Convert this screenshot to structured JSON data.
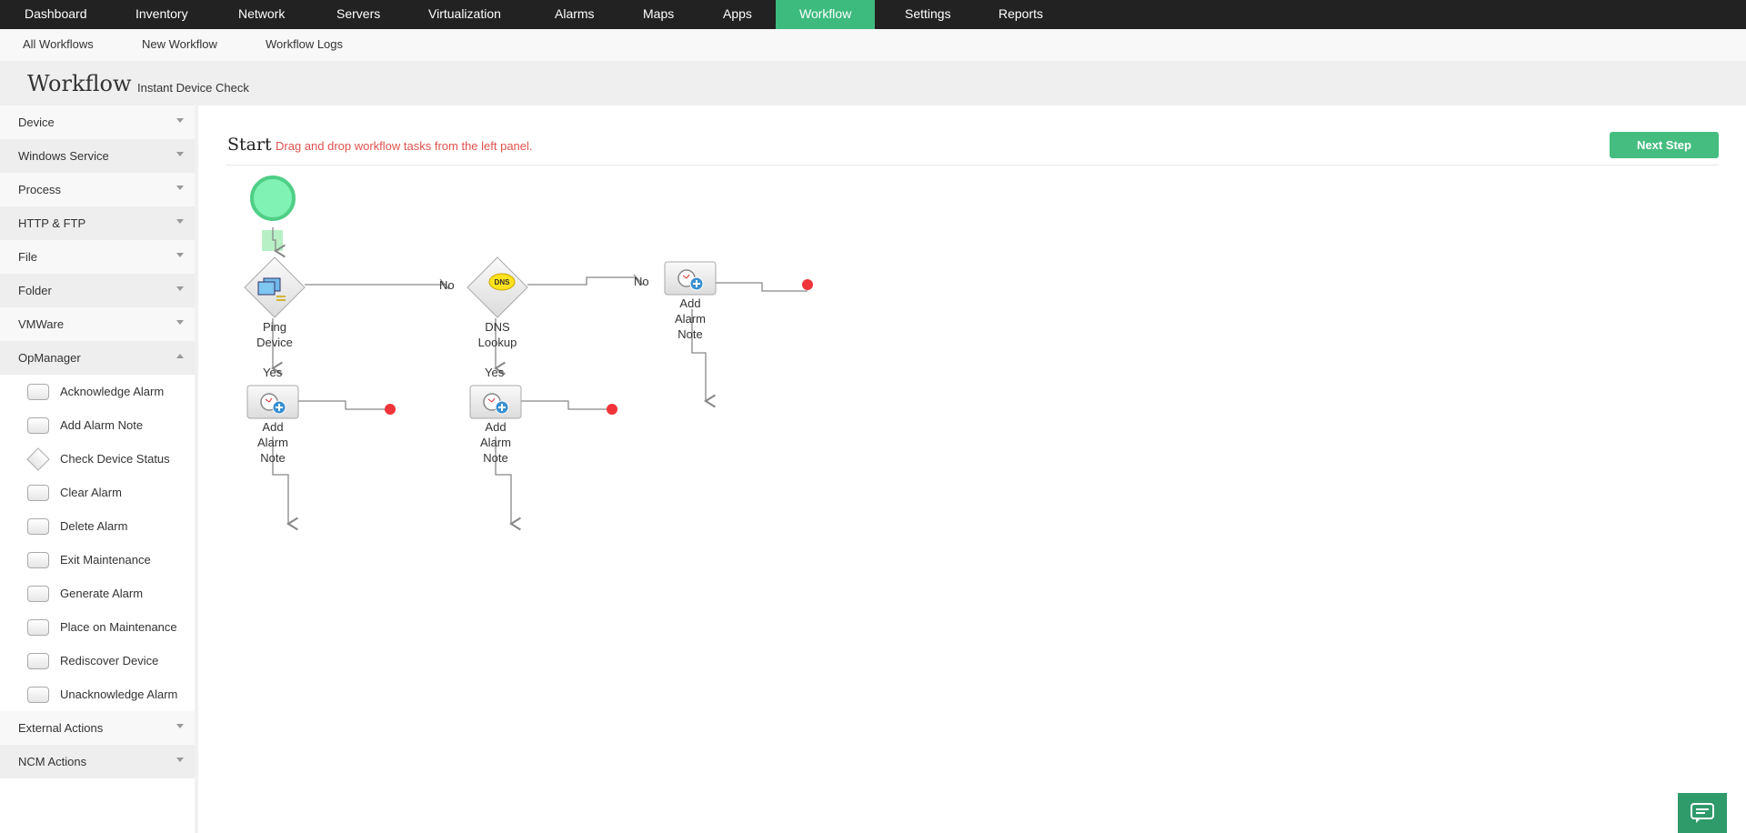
{
  "topnav": {
    "items": [
      "Dashboard",
      "Inventory",
      "Network",
      "Servers",
      "Virtualization",
      "Alarms",
      "Maps",
      "Apps",
      "Workflow",
      "Settings",
      "Reports"
    ],
    "active": "Workflow",
    "active_color": "#3dbb7e"
  },
  "subnav": {
    "items": [
      "All Workflows",
      "New Workflow",
      "Workflow Logs"
    ]
  },
  "header": {
    "title": "Workflow",
    "subtitle": "Instant Device Check"
  },
  "sidebar": {
    "sections_top": [
      "Device",
      "Windows Service",
      "Process",
      "HTTP & FTP",
      "File",
      "Folder",
      "VMWare"
    ],
    "expanded": {
      "label": "OpManager",
      "items": [
        {
          "label": "Acknowledge Alarm",
          "icon": "task-box-icon"
        },
        {
          "label": "Add Alarm Note",
          "icon": "task-box-icon"
        },
        {
          "label": "Check Device Status",
          "icon": "condition-diamond-icon"
        },
        {
          "label": "Clear Alarm",
          "icon": "task-box-icon"
        },
        {
          "label": "Delete Alarm",
          "icon": "task-box-icon"
        },
        {
          "label": "Exit Maintenance",
          "icon": "task-box-icon"
        },
        {
          "label": "Generate Alarm",
          "icon": "task-box-icon"
        },
        {
          "label": "Place on Maintenance",
          "icon": "task-box-icon"
        },
        {
          "label": "Rediscover Device",
          "icon": "task-box-icon"
        },
        {
          "label": "Unacknowledge Alarm",
          "icon": "task-box-icon"
        }
      ]
    },
    "sections_bottom": [
      "External Actions",
      "NCM Actions"
    ]
  },
  "canvas": {
    "start_label": "Start",
    "hint": "Drag and drop workflow tasks from the left panel.",
    "next_button": "Next Step",
    "accent": "#45bd80",
    "hint_color": "#e0524e",
    "nodes": {
      "ping": {
        "l1": "Ping",
        "l2": "Device"
      },
      "dns": {
        "l1": "DNS",
        "l2": "Lookup",
        "badge": "DNS"
      },
      "note": {
        "l1": "Add",
        "l2": "Alarm",
        "l3": "Note"
      }
    },
    "no_label": "No",
    "yes_label": "Yes",
    "end_color": "#f0343a"
  }
}
